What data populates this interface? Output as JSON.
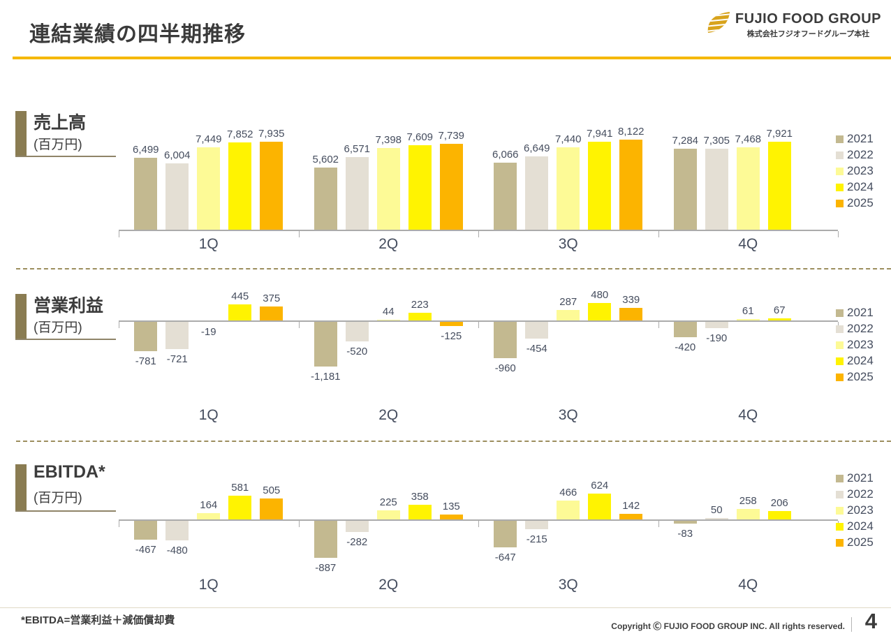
{
  "page": {
    "title": "連結業績の四半期推移",
    "footnote": "*EBITDA=営業利益＋減価償却費",
    "copyright": "Copyright Ⓒ FUJIO FOOD GROUP INC. All rights reserved.",
    "page_number": "4"
  },
  "logo": {
    "name": "FUJIO FOOD GROUP",
    "subtitle": "株式会社フジオフードグループ本社"
  },
  "colors": {
    "2021": "#C3B990",
    "2022": "#E4DFD4",
    "2023": "#FDFA96",
    "2024": "#FFF301",
    "2025": "#FCB400",
    "accent_gold": "#F5B800",
    "section_bar": "#8A7C52",
    "axis": "#ABABAB",
    "label_text": "#454D5E"
  },
  "legend_years": [
    "2021",
    "2022",
    "2023",
    "2024",
    "2025"
  ],
  "quarters": [
    "1Q",
    "2Q",
    "3Q",
    "4Q"
  ],
  "chart_data": [
    {
      "type": "bar",
      "title": "売上高",
      "unit": "(百万円)",
      "categories": [
        "1Q",
        "2Q",
        "3Q",
        "4Q"
      ],
      "legend_position": "right",
      "series": [
        {
          "name": "2021",
          "values": [
            6499,
            5602,
            6066,
            7284
          ]
        },
        {
          "name": "2022",
          "values": [
            6004,
            6571,
            6649,
            7305
          ]
        },
        {
          "name": "2023",
          "values": [
            7449,
            7398,
            7440,
            7468
          ]
        },
        {
          "name": "2024",
          "values": [
            7852,
            7609,
            7941,
            7921
          ]
        },
        {
          "name": "2025",
          "values": [
            7935,
            7739,
            8122,
            null
          ]
        }
      ]
    },
    {
      "type": "bar",
      "title": "営業利益",
      "unit": "(百万円)",
      "categories": [
        "1Q",
        "2Q",
        "3Q",
        "4Q"
      ],
      "legend_position": "right",
      "series": [
        {
          "name": "2021",
          "values": [
            -781,
            -1181,
            -960,
            -420
          ]
        },
        {
          "name": "2022",
          "values": [
            -721,
            -520,
            -454,
            -190
          ]
        },
        {
          "name": "2023",
          "values": [
            -19,
            44,
            287,
            61
          ]
        },
        {
          "name": "2024",
          "values": [
            445,
            223,
            480,
            67
          ]
        },
        {
          "name": "2025",
          "values": [
            375,
            -125,
            339,
            null
          ]
        }
      ]
    },
    {
      "type": "bar",
      "title": "EBITDA*",
      "unit": "(百万円)",
      "categories": [
        "1Q",
        "2Q",
        "3Q",
        "4Q"
      ],
      "legend_position": "right",
      "series": [
        {
          "name": "2021",
          "values": [
            -467,
            -887,
            -647,
            -83
          ]
        },
        {
          "name": "2022",
          "values": [
            -480,
            -282,
            -215,
            50
          ]
        },
        {
          "name": "2023",
          "values": [
            164,
            225,
            466,
            258
          ]
        },
        {
          "name": "2024",
          "values": [
            581,
            358,
            624,
            206
          ]
        },
        {
          "name": "2025",
          "values": [
            505,
            135,
            142,
            null
          ]
        }
      ]
    }
  ]
}
